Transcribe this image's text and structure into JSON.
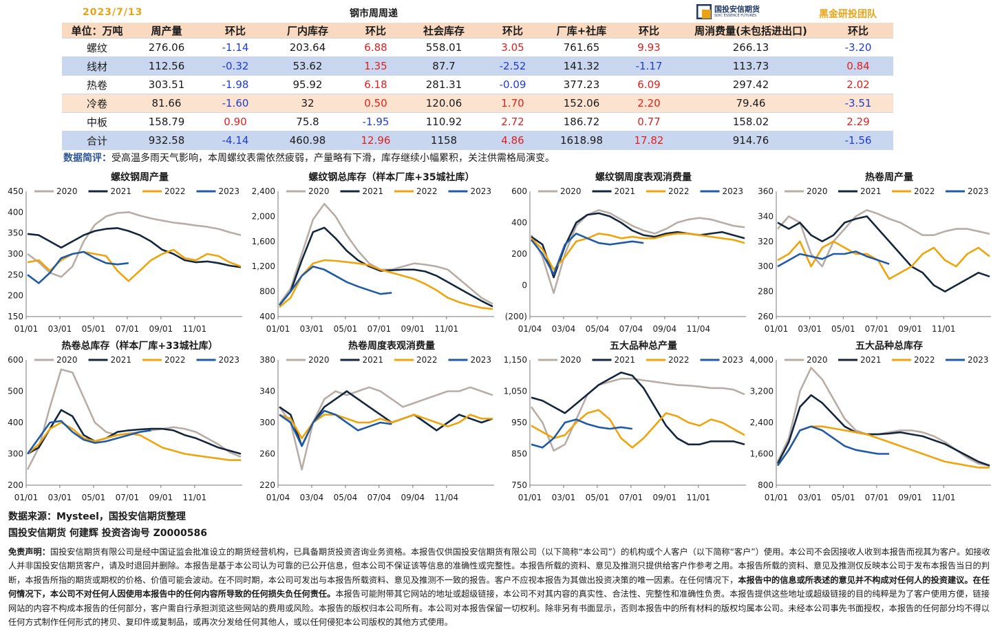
{
  "header": {
    "date": "2023/7/13",
    "table_title": "钢市周周递",
    "logo_text": "国投安信期货",
    "logo_sub": "SDIC ESSENCE FUTURES",
    "team": "黑金研投团队"
  },
  "table": {
    "columns": [
      "单位：万吨",
      "周产量",
      "环比",
      "厂内库存",
      "环比",
      "社会库存",
      "环比",
      "厂库+社库",
      "环比",
      "周消费量(未包括进出口)",
      "环比"
    ],
    "rows": [
      [
        "螺纹",
        "276.06",
        "-1.14",
        "203.64",
        "6.88",
        "558.01",
        "3.05",
        "761.65",
        "9.93",
        "266.13",
        "-3.20"
      ],
      [
        "线材",
        "112.56",
        "-0.32",
        "53.62",
        "1.35",
        "87.7",
        "-2.52",
        "141.32",
        "-1.17",
        "113.73",
        "0.84"
      ],
      [
        "热卷",
        "303.51",
        "-1.98",
        "95.92",
        "6.18",
        "281.31",
        "-0.09",
        "377.23",
        "6.09",
        "297.42",
        "2.02"
      ],
      [
        "冷卷",
        "81.66",
        "-1.60",
        "32",
        "0.50",
        "120.06",
        "1.70",
        "152.06",
        "2.20",
        "79.46",
        "-3.51"
      ],
      [
        "中板",
        "158.79",
        "0.90",
        "75.8",
        "-1.95",
        "110.92",
        "2.72",
        "186.72",
        "0.77",
        "158.02",
        "2.29"
      ],
      [
        "合计",
        "932.58",
        "-4.14",
        "460.98",
        "12.96",
        "1158",
        "4.86",
        "1618.98",
        "17.82",
        "914.76",
        "-1.56"
      ]
    ],
    "row_styles": [
      "white",
      "blue",
      "white",
      "peach",
      "white",
      "blue"
    ]
  },
  "comment": {
    "label": "数据简评：",
    "text": "受高温多雨天气影响，本周螺纹表需依然疲弱，产量略有下滑，库存继续小幅累积，关注供需格局演变。"
  },
  "series_colors": {
    "2020": "#b8ada6",
    "2021": "#12263d",
    "2022": "#f0a30a",
    "2023": "#1f5aa6"
  },
  "legend": [
    "2020",
    "2021",
    "2022",
    "2023"
  ],
  "chart_data": [
    {
      "type": "line",
      "title": "螺纹钢周产量",
      "ylim": [
        150,
        450
      ],
      "yticks": [
        "450",
        "400",
        "350",
        "300",
        "250",
        "200",
        "150"
      ],
      "xticks": [
        "01/01",
        "03/01",
        "05/01",
        "07/01",
        "09/01",
        "11/01"
      ],
      "series": [
        {
          "name": "2020",
          "values": [
            300,
            280,
            255,
            245,
            270,
            330,
            370,
            390,
            398,
            400,
            392,
            385,
            380,
            375,
            372,
            368,
            365,
            360,
            352,
            345
          ]
        },
        {
          "name": "2021",
          "values": [
            348,
            345,
            330,
            315,
            330,
            345,
            355,
            360,
            362,
            355,
            345,
            330,
            310,
            300,
            285,
            280,
            282,
            278,
            272,
            268
          ]
        },
        {
          "name": "2022",
          "values": [
            280,
            285,
            260,
            285,
            300,
            305,
            300,
            295,
            260,
            235,
            260,
            285,
            300,
            310,
            290,
            285,
            300,
            295,
            280,
            270
          ]
        },
        {
          "name": "2023",
          "values": [
            250,
            230,
            255,
            290,
            300,
            305,
            290,
            278,
            275,
            278
          ]
        }
      ]
    },
    {
      "type": "line",
      "title": "螺纹钢总库存（样本厂库+35城社库）",
      "ylim": [
        400,
        2400
      ],
      "yticks": [
        "2,400",
        "2,000",
        "1,600",
        "1,200",
        "800",
        "400"
      ],
      "xticks": [
        "01/01",
        "03/01",
        "05/01",
        "07/01",
        "09/01",
        "11/01"
      ],
      "series": [
        {
          "name": "2020",
          "values": [
            600,
            850,
            1400,
            1950,
            2200,
            2000,
            1700,
            1450,
            1250,
            1150,
            1150,
            1200,
            1250,
            1230,
            1200,
            1150,
            1000,
            850,
            700,
            600
          ]
        },
        {
          "name": "2021",
          "values": [
            580,
            800,
            1300,
            1750,
            1820,
            1650,
            1450,
            1300,
            1200,
            1130,
            1140,
            1150,
            1150,
            1120,
            1050,
            950,
            850,
            750,
            650,
            560
          ]
        },
        {
          "name": "2022",
          "values": [
            550,
            700,
            1050,
            1250,
            1300,
            1290,
            1270,
            1250,
            1220,
            1150,
            1100,
            1050,
            1000,
            920,
            820,
            700,
            630,
            580,
            540,
            520
          ]
        },
        {
          "name": "2023",
          "values": [
            580,
            800,
            1050,
            1200,
            1150,
            1050,
            950,
            880,
            820,
            760,
            780
          ]
        }
      ]
    },
    {
      "type": "line",
      "title": "螺纹钢周度表观消费量",
      "ylim": [
        -200,
        600
      ],
      "yticks": [
        "600",
        "400",
        "200",
        "0",
        "(200)"
      ],
      "xticks": [
        "01/04",
        "03/04",
        "05/04",
        "07/04",
        "09/04",
        "11/04"
      ],
      "series": [
        {
          "name": "2020",
          "values": [
            320,
            180,
            -50,
            200,
            380,
            450,
            480,
            460,
            420,
            380,
            350,
            330,
            360,
            400,
            420,
            430,
            420,
            400,
            380,
            370
          ]
        },
        {
          "name": "2021",
          "values": [
            310,
            260,
            50,
            250,
            400,
            450,
            460,
            440,
            400,
            350,
            320,
            310,
            330,
            340,
            330,
            320,
            330,
            340,
            320,
            300
          ]
        },
        {
          "name": "2022",
          "values": [
            300,
            230,
            100,
            180,
            280,
            300,
            330,
            320,
            300,
            310,
            300,
            300,
            320,
            330,
            330,
            320,
            310,
            300,
            290,
            270
          ]
        },
        {
          "name": "2023",
          "values": [
            290,
            200,
            70,
            260,
            330,
            300,
            270,
            260,
            270,
            280,
            270
          ]
        }
      ]
    },
    {
      "type": "line",
      "title": "热卷周产量",
      "ylim": [
        260,
        360
      ],
      "yticks": [
        "360",
        "340",
        "320",
        "300",
        "280",
        "260"
      ],
      "xticks": [
        "01/01",
        "03/01",
        "05/01",
        "07/01",
        "09/01",
        "11/01"
      ],
      "series": [
        {
          "name": "2020",
          "values": [
            330,
            340,
            335,
            310,
            300,
            320,
            330,
            340,
            345,
            342,
            338,
            335,
            330,
            325,
            325,
            328,
            330,
            330,
            328,
            326
          ]
        },
        {
          "name": "2021",
          "values": [
            335,
            330,
            335,
            325,
            320,
            325,
            335,
            338,
            340,
            330,
            320,
            310,
            300,
            295,
            285,
            280,
            285,
            290,
            295,
            292
          ]
        },
        {
          "name": "2022",
          "values": [
            305,
            310,
            320,
            300,
            315,
            320,
            315,
            310,
            310,
            305,
            290,
            295,
            300,
            310,
            315,
            305,
            300,
            310,
            315,
            308
          ]
        },
        {
          "name": "2023",
          "values": [
            300,
            305,
            310,
            308,
            306,
            310,
            310,
            312,
            308,
            305,
            302
          ]
        }
      ]
    },
    {
      "type": "line",
      "title": "热卷总库存（样本厂库+33城社库）",
      "ylim": [
        200,
        600
      ],
      "yticks": [
        "600",
        "500",
        "400",
        "300",
        "200"
      ],
      "xticks": [
        "01/01",
        "03/01",
        "05/01",
        "07/01",
        "09/01",
        "11/01"
      ],
      "series": [
        {
          "name": "2020",
          "values": [
            250,
            320,
            450,
            570,
            560,
            480,
            400,
            370,
            360,
            365,
            370,
            375,
            380,
            385,
            380,
            370,
            350,
            330,
            305,
            290
          ]
        },
        {
          "name": "2021",
          "values": [
            300,
            320,
            380,
            440,
            420,
            360,
            340,
            350,
            370,
            375,
            378,
            380,
            380,
            375,
            360,
            350,
            335,
            320,
            310,
            300
          ]
        },
        {
          "name": "2022",
          "values": [
            300,
            330,
            380,
            400,
            380,
            350,
            340,
            350,
            360,
            365,
            360,
            340,
            320,
            310,
            300,
            295,
            290,
            285,
            280,
            280
          ]
        },
        {
          "name": "2023",
          "values": [
            300,
            350,
            400,
            405,
            370,
            345,
            335,
            340,
            350,
            360,
            370,
            375
          ]
        }
      ]
    },
    {
      "type": "line",
      "title": "热卷周度表观消费量",
      "ylim": [
        220,
        380
      ],
      "yticks": [
        "380",
        "340",
        "300",
        "260",
        "220"
      ],
      "xticks": [
        "01/04",
        "03/04",
        "05/04",
        "07/04",
        "09/04",
        "11/04"
      ],
      "series": [
        {
          "name": "2020",
          "values": [
            320,
            300,
            240,
            300,
            330,
            340,
            335,
            340,
            345,
            340,
            330,
            320,
            325,
            330,
            335,
            340,
            340,
            345,
            340,
            335
          ]
        },
        {
          "name": "2021",
          "values": [
            320,
            310,
            270,
            300,
            320,
            330,
            340,
            330,
            320,
            310,
            300,
            305,
            310,
            300,
            290,
            300,
            310,
            305,
            300,
            305
          ]
        },
        {
          "name": "2022",
          "values": [
            310,
            305,
            280,
            300,
            310,
            310,
            305,
            300,
            300,
            305,
            300,
            305,
            310,
            305,
            300,
            295,
            300,
            310,
            305,
            305
          ]
        },
        {
          "name": "2023",
          "values": [
            310,
            300,
            270,
            300,
            315,
            310,
            300,
            290,
            295,
            300,
            298
          ]
        }
      ]
    },
    {
      "type": "line",
      "title": "五大品种总产量",
      "ylim": [
        750,
        1150
      ],
      "yticks": [
        "1,150",
        "1,050",
        "950",
        "850",
        "750"
      ],
      "xticks": [
        "01/01",
        "03/01",
        "05/01",
        "07/01",
        "09/01",
        "11/01"
      ],
      "series": [
        {
          "name": "2020",
          "values": [
            1000,
            950,
            860,
            880,
            960,
            1040,
            1070,
            1080,
            1090,
            1090,
            1085,
            1080,
            1075,
            1070,
            1068,
            1065,
            1060,
            1060,
            1055,
            1040
          ]
        },
        {
          "name": "2021",
          "values": [
            1030,
            1020,
            1000,
            980,
            1010,
            1040,
            1070,
            1090,
            1110,
            1100,
            1060,
            1000,
            940,
            900,
            880,
            880,
            890,
            890,
            890,
            880
          ]
        },
        {
          "name": "2022",
          "values": [
            940,
            920,
            900,
            910,
            950,
            980,
            990,
            960,
            900,
            870,
            900,
            940,
            980,
            970,
            950,
            940,
            960,
            950,
            930,
            910
          ]
        },
        {
          "name": "2023",
          "values": [
            880,
            870,
            900,
            950,
            960,
            945,
            935,
            930,
            935,
            930
          ]
        }
      ]
    },
    {
      "type": "line",
      "title": "五大品种总库存",
      "ylim": [
        800,
        4000
      ],
      "yticks": [
        "4,000",
        "3,200",
        "2,400",
        "1,600",
        "800"
      ],
      "xticks": [
        "01/01",
        "03/01",
        "05/01",
        "07/01",
        "09/01",
        "11/01"
      ],
      "series": [
        {
          "name": "2020",
          "values": [
            1400,
            2000,
            3200,
            3800,
            3500,
            3000,
            2500,
            2200,
            2100,
            2100,
            2150,
            2200,
            2200,
            2150,
            2050,
            1900,
            1700,
            1500,
            1350,
            1300
          ]
        },
        {
          "name": "2021",
          "values": [
            1350,
            1900,
            2800,
            3100,
            2900,
            2600,
            2300,
            2150,
            2100,
            2100,
            2120,
            2150,
            2100,
            2050,
            1950,
            1850,
            1700,
            1550,
            1400,
            1300
          ]
        },
        {
          "name": "2022",
          "values": [
            1300,
            1700,
            2200,
            2300,
            2300,
            2250,
            2200,
            2150,
            2100,
            2000,
            1900,
            1800,
            1700,
            1600,
            1500,
            1400,
            1350,
            1300,
            1250,
            1250
          ]
        },
        {
          "name": "2023",
          "values": [
            1300,
            1700,
            2200,
            2300,
            2200,
            2000,
            1800,
            1700,
            1650,
            1600,
            1600
          ]
        }
      ]
    }
  ],
  "footer": {
    "source": "数据来源：Mysteel，国投安信期货整理",
    "author": "国投安信期货 何建辉 投资咨询号 Z0000586",
    "disclaimer_label": "免责声明：",
    "disclaimer_1": "国投安信期货有限公司是经中国证监会批准设立的期货经营机构，已具备期货投资咨询业务资格。本报告仅供国投安信期货有限公司（以下简称“本公司”）的机构或个人客户（以下简称“客户”）使用。本公司不会因接收人收到本报告而视其为客户。如接收人并非国投安信期货客户，请及时退回并删除。本报告是基于本公司认为可靠的已公开信息，但本公司不保证该等信息的准确性或完整性。本报告所载的资料、意见及推测只提供给客户作参考之用。本报告所载的资料、意见及推测仅反映本公司于发布本报告当日的判断，本报告所指的期货或期权的价格、价值可能会波动。在不同时期，本公司可发出与本报告所载资料、意见及推测不一致的报告。客户不应视本报告为其做出投资决策的唯一因素。在任何情况下，",
    "disclaimer_bold": "本报告中的信息或所表述的意见并不构成对任何人的投资建议。在任何情况下，本公司不对任何人因使用本报告中的任何内容所导致的任何损失负任何责任。",
    "disclaimer_2": "本报告可能附带其它网站的地址或超级链接，本公司不对其内容的真实性、合法性、完整性和准确性负责。本报告提供这些地址或超级链接的目的纯粹是为了客户使用方便，链接网站的内容不构成本报告的任何部分，客户需自行承担浏览这些网站的费用或风险。本报告的版权归本公司所有。本公司对本报告保留一切权利。除非另有书面显示，否则本报告中的所有材料的版权均属本公司。未经本公司事先书面授权，本报告的任何部分均不得以任何方式制作任何形式的拷贝、复印件或复制品，或再次分发给任何其他人，或以任何侵犯本公司版权的其他方式使用。"
  }
}
